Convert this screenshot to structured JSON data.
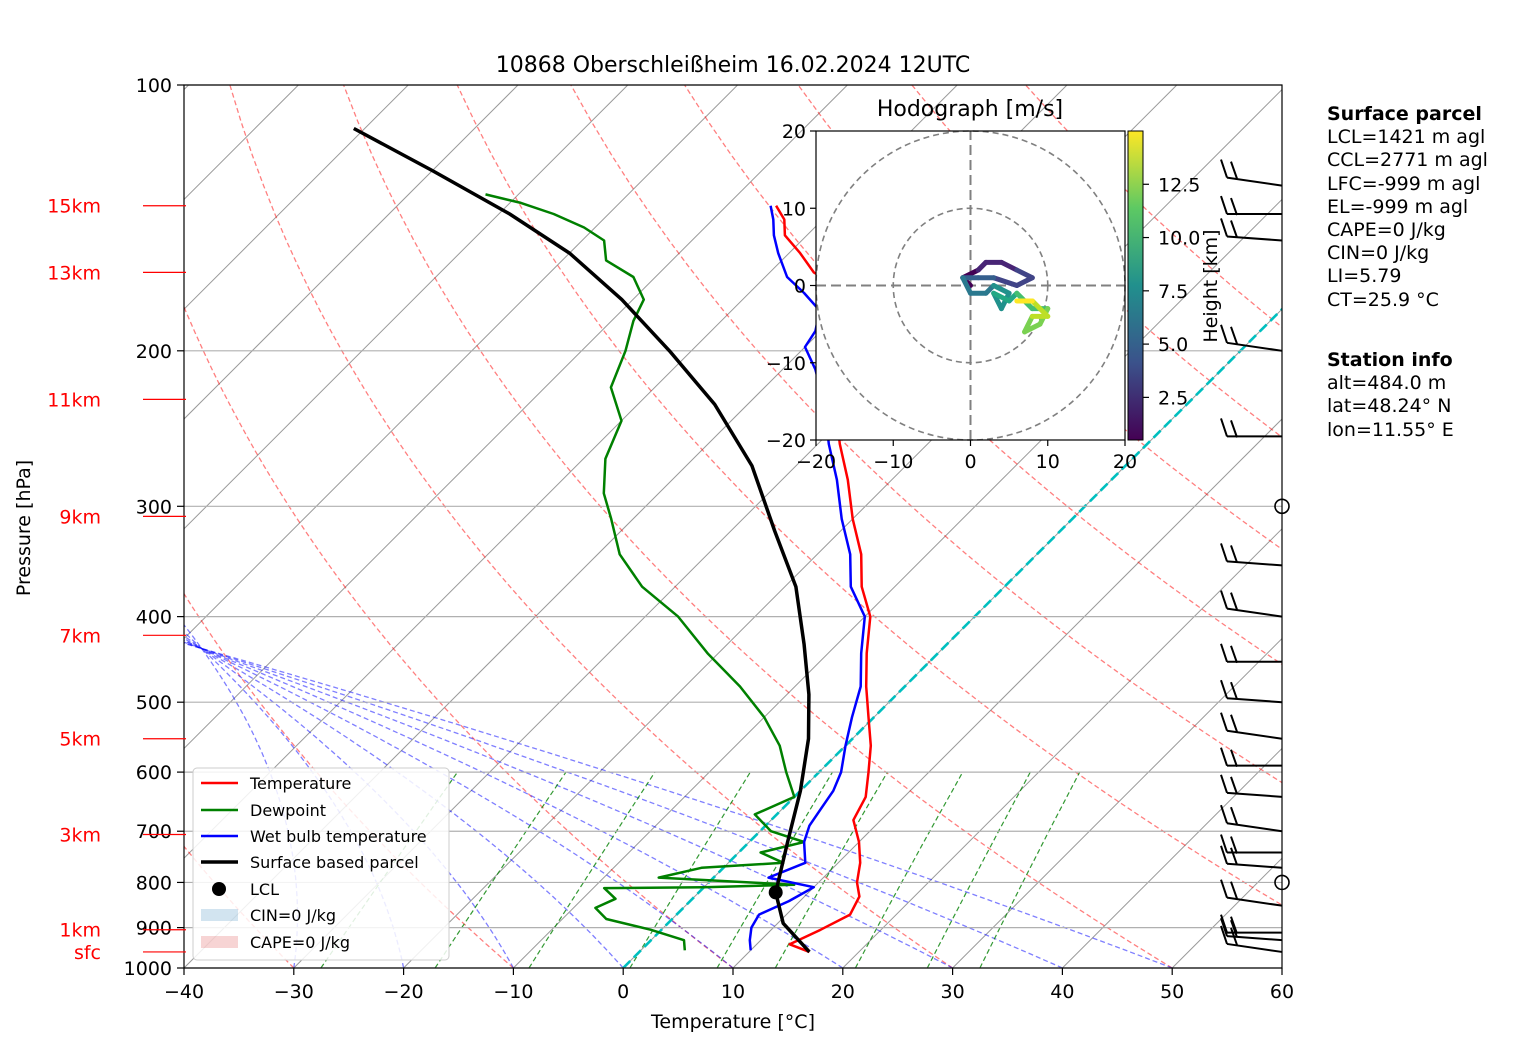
{
  "title": "10868 Oberschleißheim 16.02.2024 12UTC",
  "chart_data": {
    "type": "line",
    "subtype": "skew-T log-p diagram",
    "xlabel": "Temperature [°C]",
    "ylabel": "Pressure [hPa]",
    "xlim": [
      -40,
      60
    ],
    "ylim": [
      1000,
      100
    ],
    "y_scale": "log",
    "x_ticks": [
      "−40",
      "−30",
      "−20",
      "−10",
      "0",
      "10",
      "20",
      "30",
      "40",
      "50",
      "60"
    ],
    "y_ticks": [
      "100",
      "200",
      "300",
      "400",
      "500",
      "600",
      "700",
      "800",
      "900",
      "1000"
    ],
    "grid": true,
    "height_labels": [
      {
        "label": "15km",
        "p": 137
      },
      {
        "label": "13km",
        "p": 163
      },
      {
        "label": "11km",
        "p": 227
      },
      {
        "label": "9km",
        "p": 308
      },
      {
        "label": "7km",
        "p": 420
      },
      {
        "label": "5km",
        "p": 550
      },
      {
        "label": "3km",
        "p": 706
      },
      {
        "label": "1km",
        "p": 905
      },
      {
        "label": "sfc",
        "p": 959
      }
    ],
    "series": [
      {
        "name": "Temperature",
        "color": "#ff0000",
        "points": [
          [
            15.5,
            959
          ],
          [
            13,
            940
          ],
          [
            14.5,
            905
          ],
          [
            15.8,
            870
          ],
          [
            15,
            830
          ],
          [
            13.5,
            800
          ],
          [
            12,
            760
          ],
          [
            10,
            720
          ],
          [
            7.5,
            680
          ],
          [
            6.5,
            640
          ],
          [
            4.5,
            600
          ],
          [
            2.3,
            560
          ],
          [
            -0.5,
            520
          ],
          [
            -3.5,
            480
          ],
          [
            -6.5,
            440
          ],
          [
            -9.5,
            400
          ],
          [
            -13,
            370
          ],
          [
            -16,
            340
          ],
          [
            -20,
            310
          ],
          [
            -24,
            280
          ],
          [
            -28,
            255
          ],
          [
            -32,
            230
          ],
          [
            -36,
            210
          ],
          [
            -39,
            195
          ],
          [
            -40.5,
            180
          ],
          [
            -42,
            170
          ],
          [
            -46,
            163
          ],
          [
            -49,
            155
          ],
          [
            -52,
            148
          ],
          [
            -53.5,
            142
          ],
          [
            -55.5,
            137
          ]
        ]
      },
      {
        "name": "Dewpoint",
        "color": "#008000",
        "points": [
          [
            4,
            955
          ],
          [
            3,
            930
          ],
          [
            -1,
            905
          ],
          [
            -6,
            880
          ],
          [
            -8,
            855
          ],
          [
            -7,
            835
          ],
          [
            -9,
            812
          ],
          [
            0,
            810
          ],
          [
            8,
            805
          ],
          [
            -5,
            790
          ],
          [
            -2,
            770
          ],
          [
            5,
            760
          ],
          [
            2,
            740
          ],
          [
            5,
            720
          ],
          [
            1,
            700
          ],
          [
            -2,
            670
          ],
          [
            0,
            640
          ],
          [
            -3,
            600
          ],
          [
            -6,
            560
          ],
          [
            -10,
            520
          ],
          [
            -15,
            480
          ],
          [
            -21,
            440
          ],
          [
            -27,
            400
          ],
          [
            -33,
            370
          ],
          [
            -38,
            340
          ],
          [
            -42,
            310
          ],
          [
            -45,
            290
          ],
          [
            -48,
            265
          ],
          [
            -50,
            240
          ],
          [
            -54,
            220
          ],
          [
            -56,
            200
          ],
          [
            -58,
            185
          ],
          [
            -59,
            175
          ],
          [
            -62,
            165
          ],
          [
            -66,
            158
          ],
          [
            -68,
            150
          ],
          [
            -71,
            145
          ],
          [
            -75,
            140
          ],
          [
            -79,
            136
          ],
          [
            -83,
            133
          ]
        ]
      },
      {
        "name": "Wet bulb temperature",
        "color": "#0000ff",
        "points": [
          [
            10,
            955
          ],
          [
            9,
            930
          ],
          [
            8,
            900
          ],
          [
            7.5,
            870
          ],
          [
            9,
            840
          ],
          [
            10,
            810
          ],
          [
            5,
            790
          ],
          [
            7,
            760
          ],
          [
            5,
            720
          ],
          [
            4,
            690
          ],
          [
            3.5,
            660
          ],
          [
            3,
            630
          ],
          [
            2,
            600
          ],
          [
            0,
            560
          ],
          [
            -2,
            520
          ],
          [
            -4,
            480
          ],
          [
            -7,
            440
          ],
          [
            -10,
            400
          ],
          [
            -14,
            370
          ],
          [
            -17,
            340
          ],
          [
            -21,
            310
          ],
          [
            -25,
            280
          ],
          [
            -29,
            255
          ],
          [
            -33,
            230
          ],
          [
            -37,
            210
          ],
          [
            -40,
            198
          ],
          [
            -40.5,
            190
          ],
          [
            -42,
            180
          ],
          [
            -45,
            172
          ],
          [
            -48,
            165
          ],
          [
            -51,
            155
          ],
          [
            -53,
            148
          ],
          [
            -54.5,
            142
          ],
          [
            -56,
            137
          ]
        ]
      },
      {
        "name": "Surface based parcel",
        "color": "#000000",
        "points": [
          [
            15.5,
            959
          ],
          [
            10.5,
            890
          ],
          [
            7,
            821
          ],
          [
            3.5,
            720
          ],
          [
            0,
            630
          ],
          [
            -4,
            550
          ],
          [
            -8,
            490
          ],
          [
            -13,
            430
          ],
          [
            -19,
            370
          ],
          [
            -26,
            320
          ],
          [
            -34,
            270
          ],
          [
            -43,
            230
          ],
          [
            -52,
            200
          ],
          [
            -61,
            175
          ],
          [
            -70,
            155
          ],
          [
            -79,
            140
          ],
          [
            -90,
            125
          ],
          [
            -101,
            112
          ]
        ]
      }
    ],
    "lcl": {
      "name": "LCL",
      "t": 7,
      "p": 821
    },
    "legend": {
      "placement": "lower-left",
      "entries": [
        "Temperature",
        "Dewpoint",
        "Wet bulb temperature",
        "Surface based parcel",
        "LCL",
        "CIN=0 J/kg",
        "CAPE=0 J/kg"
      ]
    },
    "wind_barbs": {
      "calm_circles_hpa": [
        300,
        800
      ]
    },
    "hodograph": {
      "title": "Hodograph [m/s]",
      "xlim": [
        -20,
        20
      ],
      "ylim": [
        -20,
        20
      ],
      "ticks": [
        "−20",
        "−10",
        "0",
        "10",
        "20"
      ],
      "colorbar_label": "Height [km]",
      "colorbar_ticks": [
        "2.5",
        "5.0",
        "7.5",
        "10.0",
        "12.5"
      ],
      "colormap": "viridis",
      "height_range_km": [
        0.5,
        15
      ]
    }
  },
  "sidebar": {
    "surface_parcel": {
      "heading": "Surface parcel",
      "lines": [
        "LCL=1421 m agl",
        "CCL=2771 m agl",
        "LFC=-999 m agl",
        "EL=-999 m agl",
        "CAPE=0 J/kg",
        "CIN=0 J/kg",
        "LI=5.79",
        "CT=25.9 °C"
      ]
    },
    "station_info": {
      "heading": "Station info",
      "lines": [
        "alt=484.0 m",
        "lat=48.24° N",
        "lon=11.55° E"
      ]
    }
  }
}
